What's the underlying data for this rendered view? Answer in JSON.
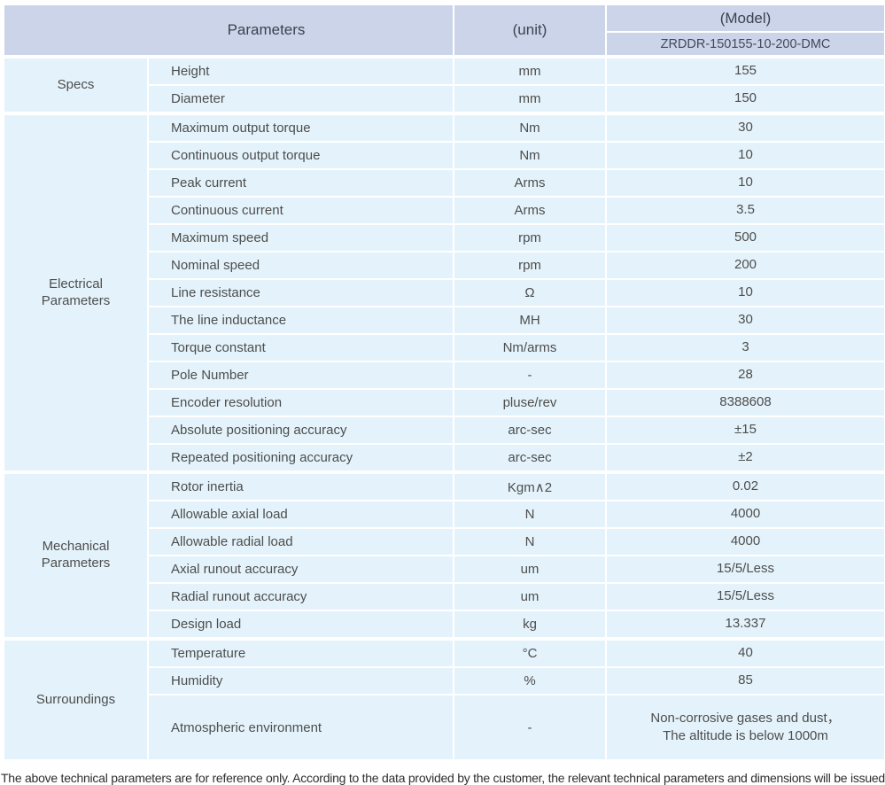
{
  "header": {
    "parameters_label": "Parameters",
    "unit_label": "(unit)",
    "model_label": "(Model)",
    "model_value": "ZRDDR-150155-10-200-DMC"
  },
  "sections": [
    {
      "label": "Specs",
      "rows": [
        {
          "param": "Height",
          "unit": "mm",
          "value": "155"
        },
        {
          "param": "Diameter",
          "unit": "mm",
          "value": "150"
        }
      ]
    },
    {
      "label": "Electrical\nParameters",
      "rows": [
        {
          "param": "Maximum output torque",
          "unit": "Nm",
          "value": "30"
        },
        {
          "param": "Continuous output torque",
          "unit": "Nm",
          "value": "10"
        },
        {
          "param": "Peak current",
          "unit": "Arms",
          "value": "10"
        },
        {
          "param": "Continuous current",
          "unit": "Arms",
          "value": "3.5"
        },
        {
          "param": "Maximum speed",
          "unit": "rpm",
          "value": "500"
        },
        {
          "param": "Nominal speed",
          "unit": "rpm",
          "value": "200"
        },
        {
          "param": "Line resistance",
          "unit": "Ω",
          "value": "10"
        },
        {
          "param": "The line inductance",
          "unit": "MH",
          "value": "30"
        },
        {
          "param": "Torque constant",
          "unit": "Nm/arms",
          "value": "3"
        },
        {
          "param": "Pole Number",
          "unit": "-",
          "value": "28"
        },
        {
          "param": "Encoder resolution",
          "unit": "pluse/rev",
          "value": "8388608"
        },
        {
          "param": "Absolute positioning accuracy",
          "unit": "arc-sec",
          "value": "±15"
        },
        {
          "param": "Repeated positioning accuracy",
          "unit": "arc-sec",
          "value": "±2"
        }
      ]
    },
    {
      "label": "Mechanical\nParameters",
      "rows": [
        {
          "param": "Rotor inertia",
          "unit": "Kgm∧2",
          "value": "0.02"
        },
        {
          "param": "Allowable axial load",
          "unit": "N",
          "value": "4000"
        },
        {
          "param": "Allowable radial load",
          "unit": "N",
          "value": "4000"
        },
        {
          "param": "Axial runout accuracy",
          "unit": "um",
          "value": "15/5/Less"
        },
        {
          "param": "Radial runout accuracy",
          "unit": "um",
          "value": "15/5/Less"
        },
        {
          "param": "Design load",
          "unit": "kg",
          "value": "13.337"
        }
      ]
    },
    {
      "label": "Surroundings",
      "rows": [
        {
          "param": "Temperature",
          "unit": "°C",
          "value": "40"
        },
        {
          "param": "Humidity",
          "unit": "%",
          "value": "85"
        },
        {
          "param": "Atmospheric environment",
          "unit": "-",
          "value": "Non-corrosive gases and dust，\nThe altitude is below 1000m"
        }
      ]
    }
  ],
  "footer": {
    "note": "The above technical parameters are for reference only. According to the data provided by the customer, the relevant technical parameters and dimensions will be issued."
  },
  "colors": {
    "header_bg": "#cbd4e9",
    "row_bg": "#e4f3fb"
  }
}
